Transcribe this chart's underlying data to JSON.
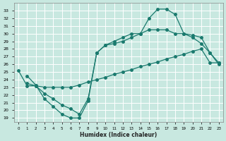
{
  "xlabel": "Humidex (Indice chaleur)",
  "bg_color": "#c8e8e0",
  "grid_color": "#ffffff",
  "line_color": "#1a7a6e",
  "xlim": [
    -0.5,
    23.5
  ],
  "ylim": [
    18.5,
    34.0
  ],
  "x_ticks": [
    0,
    1,
    2,
    3,
    4,
    5,
    6,
    7,
    8,
    9,
    10,
    11,
    12,
    13,
    14,
    15,
    16,
    17,
    18,
    19,
    20,
    21,
    22,
    23
  ],
  "y_ticks": [
    19,
    20,
    21,
    22,
    23,
    24,
    25,
    26,
    27,
    28,
    29,
    30,
    31,
    32,
    33
  ],
  "line1_x": [
    1,
    2,
    3,
    4,
    5,
    6,
    7,
    8,
    9,
    10,
    11,
    12,
    13,
    14,
    15,
    16,
    17,
    18,
    19,
    20,
    21,
    22,
    23
  ],
  "line1_y": [
    24.5,
    23.3,
    21.5,
    20.5,
    19.5,
    19.0,
    19.0,
    21.2,
    27.5,
    28.5,
    28.7,
    29.0,
    29.5,
    30.0,
    32.0,
    33.2,
    33.2,
    32.5,
    30.0,
    29.5,
    28.7,
    27.5,
    26.0
  ],
  "line2_x": [
    0,
    1,
    2,
    3,
    4,
    5,
    6,
    7,
    8,
    9,
    10,
    11,
    12,
    13,
    14,
    15,
    16,
    17,
    18,
    19,
    20,
    21,
    22,
    23
  ],
  "line2_y": [
    25.2,
    23.2,
    23.2,
    23.0,
    23.0,
    23.0,
    23.0,
    23.3,
    23.7,
    24.0,
    24.3,
    24.7,
    25.0,
    25.3,
    25.7,
    26.0,
    26.3,
    26.7,
    27.0,
    27.3,
    27.7,
    28.0,
    26.2,
    26.2
  ],
  "line3_x": [
    1,
    2,
    3,
    4,
    5,
    6,
    7,
    8,
    9,
    10,
    11,
    12,
    13,
    14,
    15,
    16,
    17,
    18,
    19,
    20,
    21,
    22,
    23
  ],
  "line3_y": [
    23.5,
    23.2,
    22.2,
    21.5,
    20.7,
    20.2,
    19.5,
    21.5,
    27.5,
    28.5,
    29.0,
    29.5,
    30.0,
    30.0,
    30.5,
    30.5,
    30.5,
    30.0,
    30.0,
    29.8,
    29.5,
    27.5,
    26.2
  ],
  "marker": "o",
  "marker_size": 2.5,
  "linewidth": 0.9
}
